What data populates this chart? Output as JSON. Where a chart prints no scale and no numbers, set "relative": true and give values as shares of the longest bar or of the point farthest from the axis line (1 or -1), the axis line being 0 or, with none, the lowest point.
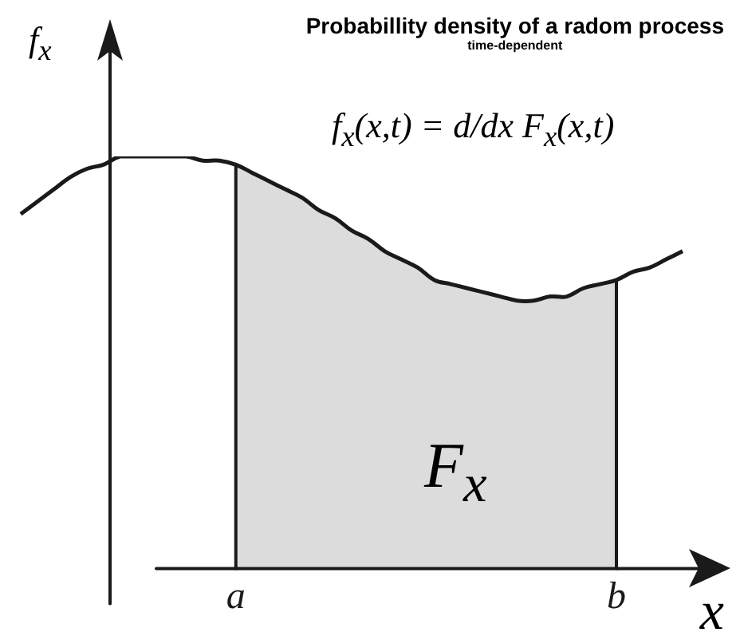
{
  "chart_data": {
    "type": "line",
    "title": "Probabillity density of a radom process",
    "subtitle": "time-dependent",
    "xlabel": "x",
    "ylabel": "f$_{x}$",
    "relative": true,
    "categories": [
      null,
      null,
      null,
      null,
      null,
      null,
      null,
      null,
      null,
      null,
      null,
      null,
      null,
      "a",
      null,
      null,
      null,
      null,
      null,
      null,
      null,
      null,
      null,
      null,
      null,
      null,
      null,
      null,
      null,
      null,
      null,
      null,
      null,
      null,
      null,
      null,
      "b",
      null,
      null,
      null,
      null
    ],
    "series": [
      {
        "type": "line",
        "color": "#1a1a1a",
        "values": [
          0.86,
          0.89,
          0.92,
          0.95,
          0.97,
          0.98,
          1.0,
          1.0,
          1.0,
          1.0,
          1.0,
          0.99,
          0.99,
          0.98,
          0.96,
          0.94,
          0.92,
          0.9,
          0.87,
          0.85,
          0.82,
          0.8,
          0.77,
          0.75,
          0.73,
          0.7,
          0.69,
          0.68,
          0.67,
          0.66,
          0.65,
          0.65,
          0.66,
          0.66,
          0.68,
          0.69,
          0.7,
          0.72,
          0.73,
          0.75,
          0.77
        ]
      },
      {
        "type": "area",
        "color": "#dcdcdc",
        "values": [
          null,
          null,
          null,
          null,
          null,
          null,
          null,
          null,
          null,
          null,
          null,
          null,
          null,
          0.98,
          0.96,
          0.94,
          0.92,
          0.9,
          0.87,
          0.85,
          0.82,
          0.8,
          0.77,
          0.75,
          0.73,
          0.7,
          0.69,
          0.68,
          0.67,
          0.66,
          0.65,
          0.65,
          0.66,
          0.66,
          0.68,
          0.69,
          0.7,
          null,
          null,
          null,
          null
        ]
      }
    ],
    "annotations": [
      "f$_{x}$(x,t) = d/dx F$_{x}$(x,t)",
      "F$_{x}$"
    ]
  }
}
